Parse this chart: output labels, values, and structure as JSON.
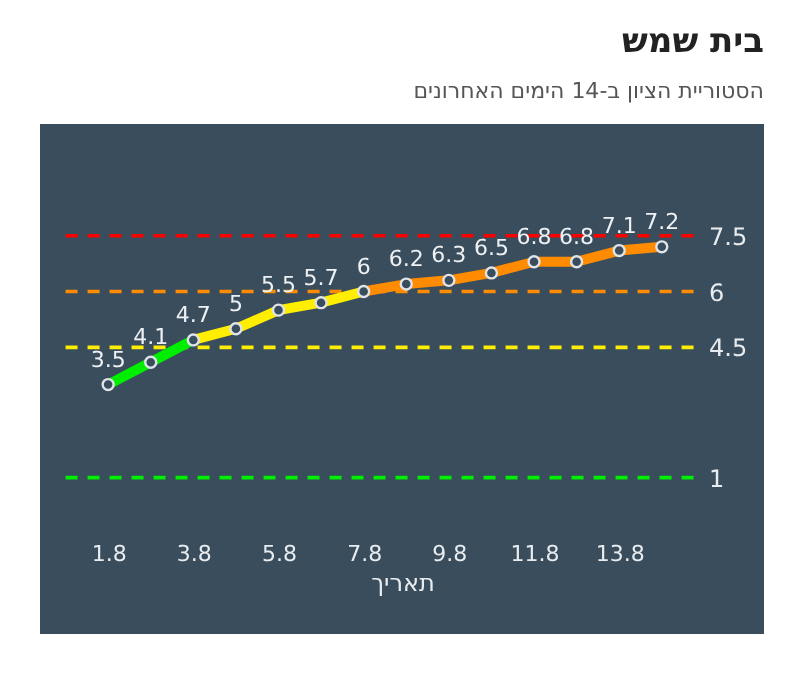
{
  "chart_data": {
    "type": "line",
    "title": "בית שמש",
    "subtitle": "הסטוריית הציון ב-14 הימים האחרונים",
    "xlabel": "תאריך",
    "categories": [
      "1.8",
      null,
      "3.8",
      null,
      "5.8",
      null,
      "7.8",
      null,
      "9.8",
      null,
      "11.8",
      null,
      "13.8",
      null
    ],
    "series": [
      {
        "values": [
          3.5,
          4.1,
          4.7,
          5,
          5.5,
          5.7,
          6,
          6.2,
          6.3,
          6.5,
          6.8,
          6.8,
          7.1,
          7.2
        ],
        "colors": [
          "#00ee00",
          "#00ee00",
          "#ffee00",
          "#ffee00",
          "#ffee00",
          "#ffee00",
          "#ff8c00",
          "#ff8c00",
          "#ff8c00",
          "#ff8c00",
          "#ff8c00",
          "#ff8c00",
          "#ff8c00",
          "#ff8c00"
        ]
      }
    ],
    "ylim": [
      -3.2,
      10.5
    ],
    "yticks": [
      1,
      4.5,
      6,
      7.5
    ],
    "data_labels": true,
    "marker": "circle",
    "ref_lines": [
      {
        "axis": "y",
        "value": 7.5,
        "color": "#ff0000",
        "line_style": "dashed"
      },
      {
        "axis": "y",
        "value": 6,
        "color": "#ff8c00",
        "line_style": "dashed"
      },
      {
        "axis": "y",
        "value": 4.5,
        "color": "#ffee00",
        "line_style": "dashed"
      },
      {
        "axis": "y",
        "value": 1,
        "color": "#00ee00",
        "line_style": "dashed"
      }
    ]
  }
}
